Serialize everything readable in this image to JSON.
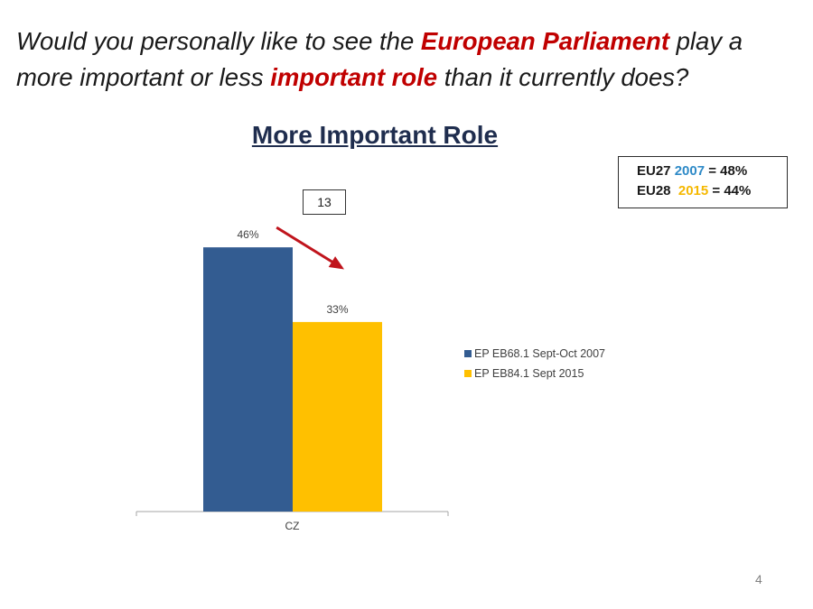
{
  "question": {
    "part1": "Would you personally like to see the ",
    "highlight1": "European Parliament",
    "part2": " play a more important or less ",
    "highlight2": "important role",
    "part3": " than it currently does?"
  },
  "eu_box": {
    "line1_prefix": "EU27 ",
    "line1_year": "2007",
    "line1_suffix": " = 48%",
    "line2_prefix": "EU28  ",
    "line2_year": "2015",
    "line2_suffix": " = 44%"
  },
  "difference_label": "13",
  "page_number": "4",
  "colors": {
    "series1": "#335c91",
    "series2": "#ffc000",
    "highlight": "#c00000",
    "arrow": "#c0141c"
  },
  "chart_data": {
    "type": "bar",
    "title": "More Important Role",
    "categories": [
      "CZ"
    ],
    "series": [
      {
        "name": "EP EB68.1 Sept-Oct 2007",
        "values": [
          46
        ],
        "label": "46%"
      },
      {
        "name": "EP EB84.1 Sept 2015",
        "values": [
          33
        ],
        "label": "33%"
      }
    ],
    "ylim": [
      0,
      60
    ],
    "grid": false,
    "legend": "right",
    "annotation_arrow": "decrease from 2007 to 2015"
  }
}
